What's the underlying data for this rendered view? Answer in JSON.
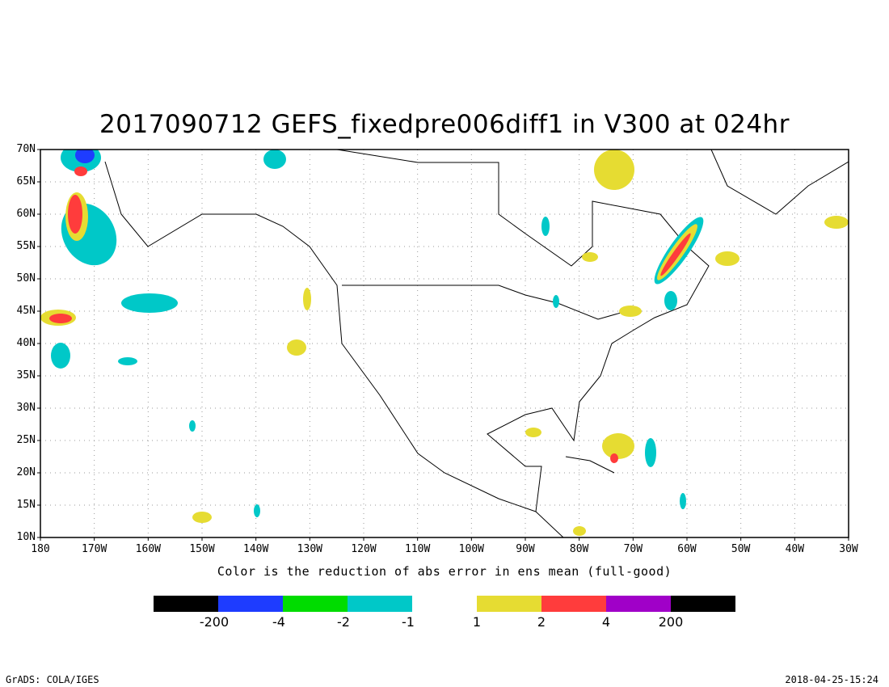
{
  "title": "2017090712 GEFS_fixedpre006diff1 in V300 at 024hr",
  "x_label": "Color is the reduction of abs error in ens mean (full-good)",
  "lat_ticks": [
    "70N",
    "65N",
    "60N",
    "55N",
    "50N",
    "45N",
    "40N",
    "35N",
    "30N",
    "25N",
    "20N",
    "15N",
    "10N"
  ],
  "lon_ticks": [
    "180",
    "170W",
    "160W",
    "150W",
    "140W",
    "130W",
    "120W",
    "110W",
    "100W",
    "90W",
    "80W",
    "70W",
    "60W",
    "50W",
    "40W",
    "30W"
  ],
  "extent": {
    "lon": [
      -180,
      -30
    ],
    "lat": [
      10,
      70
    ]
  },
  "colorbar": {
    "colors": [
      "#000000",
      "#1e3cff",
      "#00dc00",
      "#00c8c8",
      "#ffffff",
      "#e6dc32",
      "#ff3c3c",
      "#a000c8",
      "#000000"
    ],
    "labels": [
      "-200",
      "-4",
      "-2",
      "-1",
      "1",
      "2",
      "4",
      "200"
    ]
  },
  "footer": {
    "left": "GrADS: COLA/IGES",
    "right": "2018-04-25-15:24"
  }
}
